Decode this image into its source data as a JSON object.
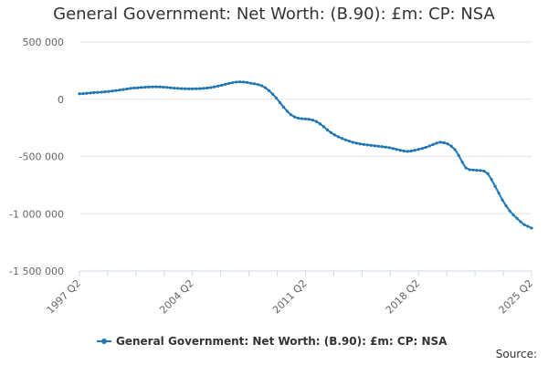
{
  "chart_data": {
    "type": "line",
    "title": "General Government: Net Worth: (B.90): £m: CP: NSA",
    "xlabel": "",
    "ylabel": "",
    "ylim": [
      -1500000,
      500000
    ],
    "y_ticks": [
      500000,
      0,
      -500000,
      -1000000,
      -1500000
    ],
    "y_tick_labels": [
      "500 000",
      "0",
      "-500 000",
      "-1 000 000",
      "-1 500 000"
    ],
    "x_tick_labels": [
      "1997 Q2",
      "2004 Q2",
      "2011 Q2",
      "2018 Q2",
      "2025 Q2"
    ],
    "grid": "horizontal",
    "legend_position": "bottom-center",
    "series": [
      {
        "name": "General Government: Net Worth: (B.90): £m: CP: NSA",
        "color": "#1f77b4",
        "x_start": "1997 Q2",
        "x_end": "2025 Q2",
        "values": [
          48000,
          49000,
          52000,
          55000,
          58000,
          60000,
          62000,
          65000,
          68000,
          72000,
          76000,
          80000,
          85000,
          90000,
          95000,
          98000,
          100000,
          103000,
          105000,
          107000,
          108000,
          109000,
          108000,
          106000,
          103000,
          100000,
          97000,
          95000,
          93000,
          92000,
          91000,
          91000,
          92000,
          93000,
          95000,
          98000,
          102000,
          108000,
          115000,
          122000,
          130000,
          138000,
          145000,
          150000,
          152000,
          150000,
          146000,
          140000,
          135000,
          128000,
          118000,
          100000,
          75000,
          45000,
          10000,
          -30000,
          -70000,
          -105000,
          -135000,
          -155000,
          -165000,
          -170000,
          -172000,
          -175000,
          -182000,
          -195000,
          -215000,
          -240000,
          -268000,
          -292000,
          -312000,
          -328000,
          -342000,
          -355000,
          -366000,
          -376000,
          -384000,
          -390000,
          -395000,
          -399000,
          -403000,
          -407000,
          -410000,
          -414000,
          -418000,
          -423000,
          -430000,
          -438000,
          -446000,
          -452000,
          -455000,
          -452000,
          -446000,
          -438000,
          -430000,
          -420000,
          -408000,
          -395000,
          -383000,
          -375000,
          -380000,
          -390000,
          -410000,
          -440000,
          -490000,
          -550000,
          -600000,
          -615000,
          -618000,
          -620000,
          -622000,
          -628000,
          -650000,
          -700000,
          -760000,
          -820000,
          -880000,
          -930000,
          -975000,
          -1010000,
          -1040000,
          -1070000,
          -1095000,
          -1110000,
          -1125000
        ]
      }
    ]
  },
  "footer": {
    "source_label": "Source:"
  }
}
